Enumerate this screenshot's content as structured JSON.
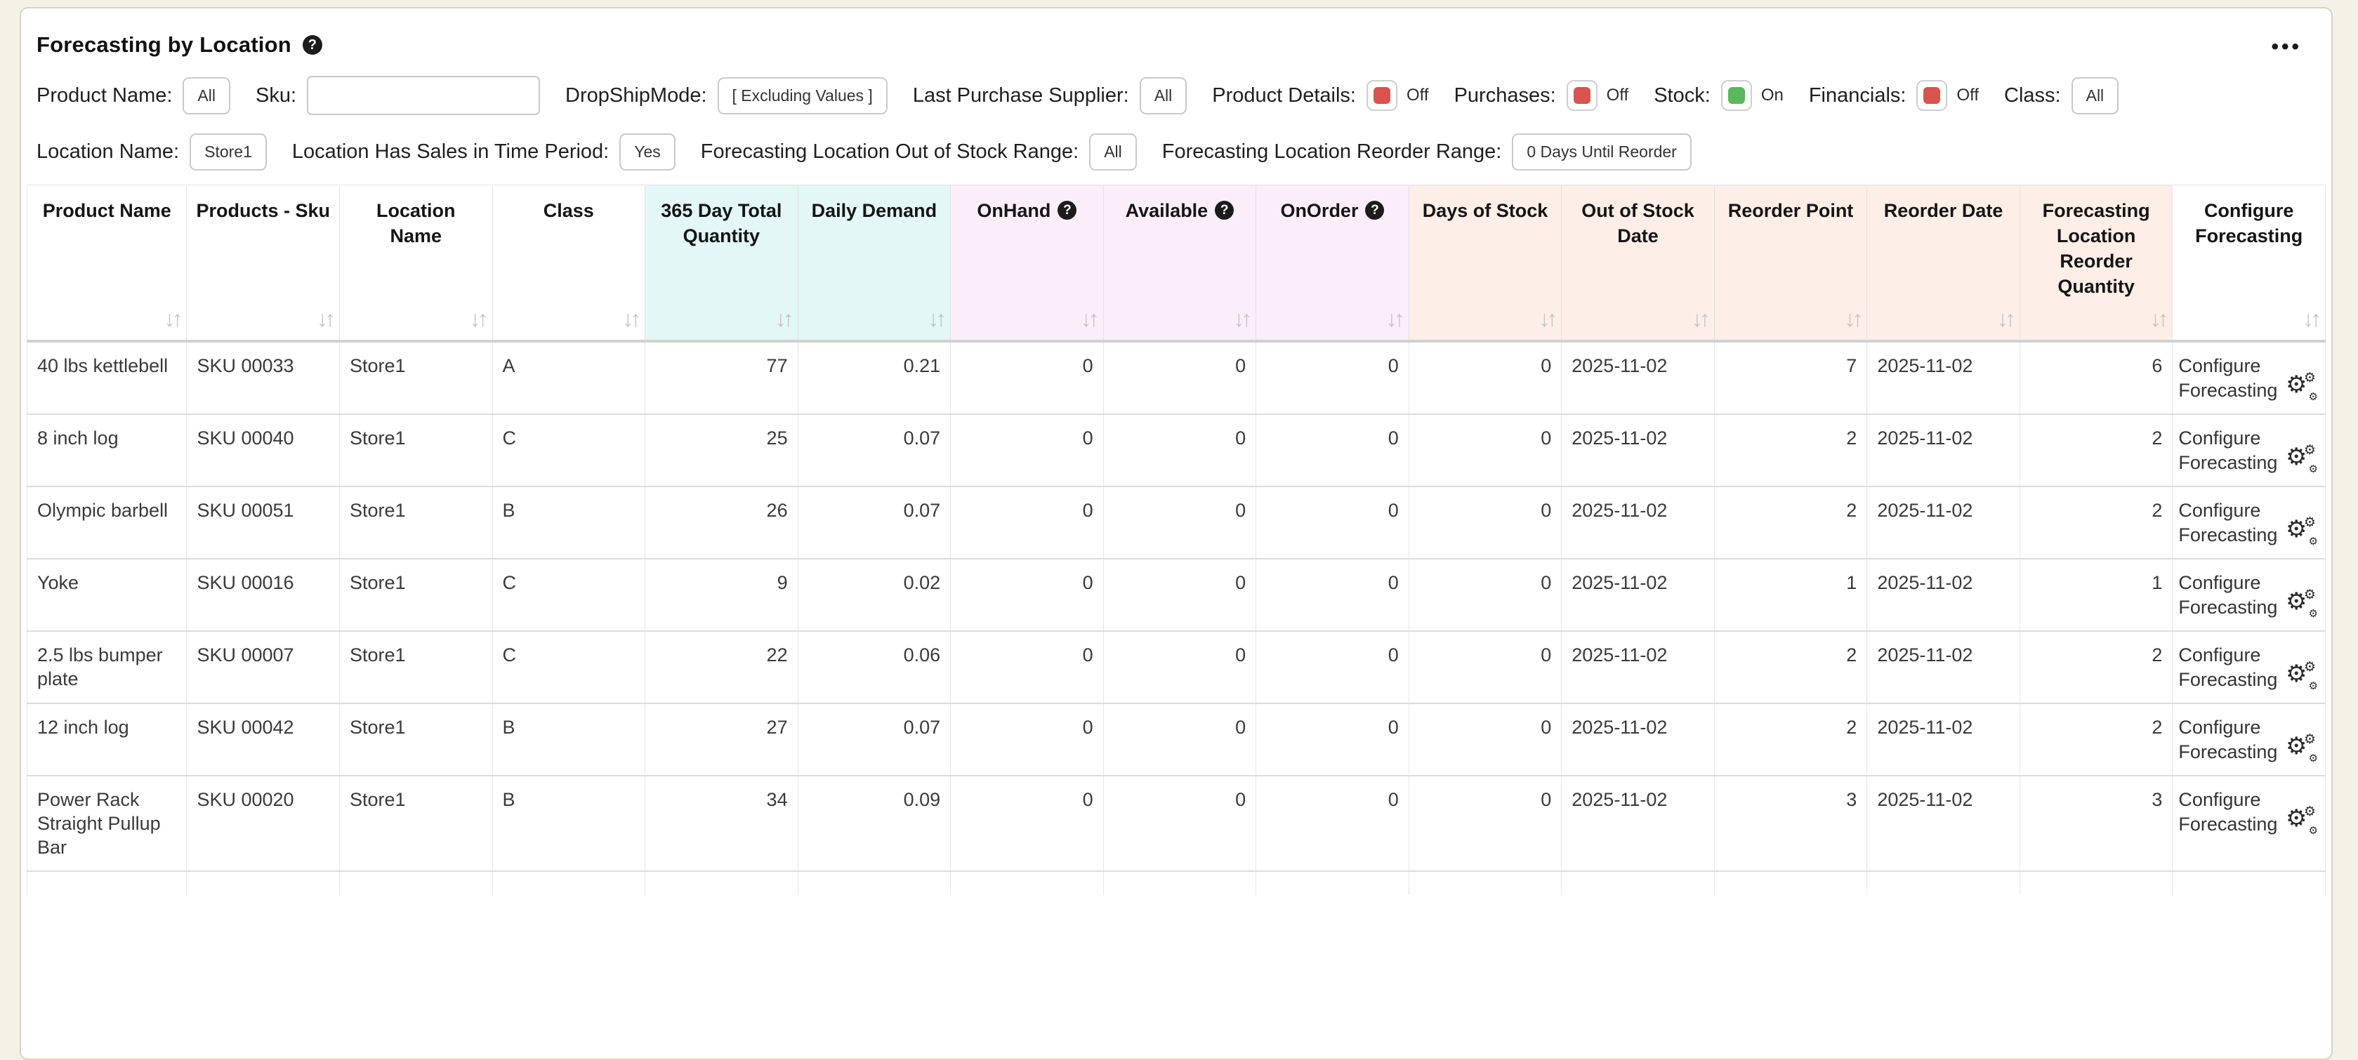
{
  "colors": {
    "page_bg": "#f4f1e7",
    "card_bg": "#ffffff",
    "accent_off": "#d9534f",
    "accent_on": "#5cb85c",
    "header_cyan": "#e2f7f6",
    "header_pink": "#fbeefa",
    "header_salmon": "#fdeee7",
    "header_plain": "#ffffff"
  },
  "icons": {
    "help": "?",
    "more": "•••",
    "sort": "↓↑",
    "gear": "⚙"
  },
  "header": {
    "title": "Forecasting by Location"
  },
  "filters": {
    "product_name": {
      "label": "Product Name:",
      "value": "All"
    },
    "sku": {
      "label": "Sku:",
      "value": ""
    },
    "dropshipmode": {
      "label": "DropShipMode:",
      "value": "[ Excluding Values ]"
    },
    "last_purchase_supplier": {
      "label": "Last Purchase Supplier:",
      "value": "All"
    },
    "product_details": {
      "label": "Product Details:",
      "state": "Off"
    },
    "purchases": {
      "label": "Purchases:",
      "state": "Off"
    },
    "stock": {
      "label": "Stock:",
      "state": "On"
    },
    "financials": {
      "label": "Financials:",
      "state": "Off"
    },
    "class": {
      "label": "Class:",
      "value": "All"
    },
    "location_name": {
      "label": "Location Name:",
      "value": "Store1"
    },
    "location_has_sales": {
      "label": "Location Has Sales in Time Period:",
      "value": "Yes"
    },
    "out_of_stock_range": {
      "label": "Forecasting Location Out of Stock Range:",
      "value": "All"
    },
    "reorder_range": {
      "label": "Forecasting Location Reorder Range:",
      "value": "0 Days Until Reorder"
    }
  },
  "table": {
    "configure_label": "Configure Forecasting",
    "columns": [
      {
        "label": "Product Name",
        "group": "plain",
        "align": "left"
      },
      {
        "label": "Products - Sku",
        "group": "plain",
        "align": "left"
      },
      {
        "label": "Location Name",
        "group": "plain",
        "align": "left"
      },
      {
        "label": "Class",
        "group": "plain",
        "align": "left"
      },
      {
        "label": "365 Day Total Quantity",
        "group": "cyan",
        "align": "right"
      },
      {
        "label": "Daily Demand",
        "group": "cyan",
        "align": "right"
      },
      {
        "label": "OnHand",
        "group": "pink",
        "align": "right",
        "help": true
      },
      {
        "label": "Available",
        "group": "pink",
        "align": "right",
        "help": true
      },
      {
        "label": "OnOrder",
        "group": "pink",
        "align": "right",
        "help": true
      },
      {
        "label": "Days of Stock",
        "group": "salmon",
        "align": "right"
      },
      {
        "label": "Out of Stock Date",
        "group": "salmon",
        "align": "left"
      },
      {
        "label": "Reorder Point",
        "group": "salmon",
        "align": "right"
      },
      {
        "label": "Reorder Date",
        "group": "salmon",
        "align": "left"
      },
      {
        "label": "Forecasting Location Reorder Quantity",
        "group": "salmon",
        "align": "right"
      },
      {
        "label": "Configure Forecasting",
        "group": "plain",
        "align": "left"
      }
    ],
    "rows": [
      [
        "40 lbs kettlebell",
        "SKU 00033",
        "Store1",
        "A",
        "77",
        "0.21",
        "0",
        "0",
        "0",
        "0",
        "2025-11-02",
        "7",
        "2025-11-02",
        "6"
      ],
      [
        "8 inch log",
        "SKU 00040",
        "Store1",
        "C",
        "25",
        "0.07",
        "0",
        "0",
        "0",
        "0",
        "2025-11-02",
        "2",
        "2025-11-02",
        "2"
      ],
      [
        "Olympic barbell",
        "SKU 00051",
        "Store1",
        "B",
        "26",
        "0.07",
        "0",
        "0",
        "0",
        "0",
        "2025-11-02",
        "2",
        "2025-11-02",
        "2"
      ],
      [
        "Yoke",
        "SKU 00016",
        "Store1",
        "C",
        "9",
        "0.02",
        "0",
        "0",
        "0",
        "0",
        "2025-11-02",
        "1",
        "2025-11-02",
        "1"
      ],
      [
        "2.5 lbs bumper plate",
        "SKU 00007",
        "Store1",
        "C",
        "22",
        "0.06",
        "0",
        "0",
        "0",
        "0",
        "2025-11-02",
        "2",
        "2025-11-02",
        "2"
      ],
      [
        "12 inch log",
        "SKU 00042",
        "Store1",
        "B",
        "27",
        "0.07",
        "0",
        "0",
        "0",
        "0",
        "2025-11-02",
        "2",
        "2025-11-02",
        "2"
      ],
      [
        "Power Rack Straight Pullup Bar",
        "SKU 00020",
        "Store1",
        "B",
        "34",
        "0.09",
        "0",
        "0",
        "0",
        "0",
        "2025-11-02",
        "3",
        "2025-11-02",
        "3"
      ]
    ]
  }
}
